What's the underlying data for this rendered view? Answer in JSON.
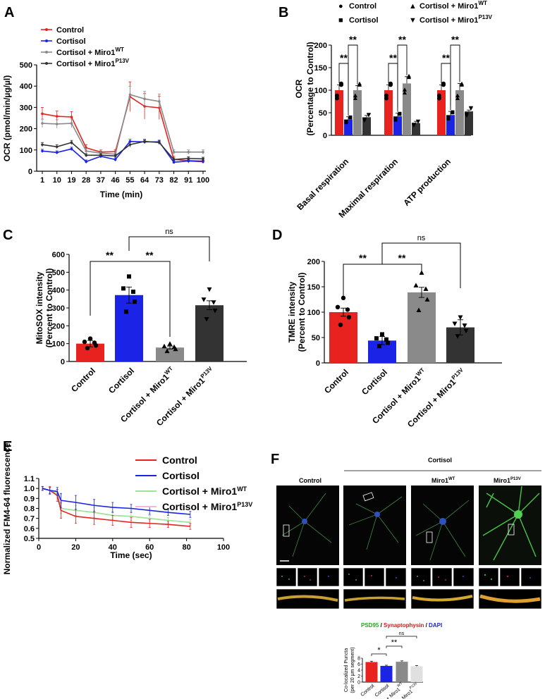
{
  "panels": {
    "A": "A",
    "B": "B",
    "C": "C",
    "D": "D",
    "E": "E",
    "F": "F"
  },
  "colors": {
    "control": "#e8221f",
    "cortisol": "#1a23e6",
    "miro_wt": "#8a8a8a",
    "miro_p13v": "#333333",
    "wt_light": "#99e699",
    "p13v_light": "#f2b8e0",
    "cortisol_F": "#e0e0e0"
  },
  "chart_data": [
    {
      "id": "A",
      "type": "line",
      "xlabel": "Time  (min)",
      "ylabel": "OCR  (pmol/min/µg/µl)",
      "x": [
        1,
        10,
        19,
        28,
        37,
        46,
        55,
        64,
        73,
        82,
        91,
        100
      ],
      "ylim": [
        0,
        500
      ],
      "yticks": [
        0,
        100,
        200,
        300,
        400,
        500
      ],
      "legend": [
        {
          "label": "Control",
          "sup": ""
        },
        {
          "label": "Cortisol",
          "sup": ""
        },
        {
          "label": "Cortisol + Miro1",
          "sup": "WT"
        },
        {
          "label": "Cortisol + Miro1",
          "sup": "P13V"
        }
      ],
      "series": [
        {
          "name": "Control",
          "values": [
            270,
            258,
            255,
            110,
            90,
            92,
            350,
            305,
            298,
            55,
            50,
            48
          ],
          "err": [
            30,
            25,
            25,
            15,
            10,
            10,
            70,
            60,
            55,
            15,
            12,
            12
          ]
        },
        {
          "name": "Cortisol",
          "values": [
            95,
            88,
            105,
            45,
            70,
            55,
            140,
            138,
            138,
            42,
            48,
            45
          ],
          "err": [
            8,
            8,
            8,
            8,
            8,
            8,
            10,
            8,
            8,
            6,
            6,
            6
          ]
        },
        {
          "name": "Cortisol + Miro1WT",
          "values": [
            225,
            222,
            225,
            95,
            85,
            80,
            360,
            340,
            328,
            90,
            90,
            90
          ],
          "err": [
            20,
            20,
            20,
            12,
            10,
            10,
            40,
            35,
            35,
            10,
            10,
            10
          ]
        },
        {
          "name": "Cortisol + Miro1P13V",
          "values": [
            125,
            115,
            135,
            75,
            75,
            72,
            125,
            140,
            135,
            55,
            60,
            58
          ],
          "err": [
            10,
            10,
            10,
            8,
            8,
            8,
            12,
            10,
            10,
            8,
            8,
            8
          ]
        }
      ]
    },
    {
      "id": "B",
      "type": "bar",
      "ylabel": "OCR",
      "ylabel2": "(Percentage to Control)",
      "ylim": [
        0,
        200
      ],
      "yticks": [
        0,
        50,
        100,
        150,
        200
      ],
      "categories": [
        "Basal respiration",
        "Maximal respiration",
        "ATP production"
      ],
      "legend": [
        {
          "marker": "●",
          "label": "Control",
          "sup": ""
        },
        {
          "marker": "■",
          "label": "Cortisol",
          "sup": ""
        },
        {
          "marker": "▲",
          "label": "Cortisol + Miro1",
          "sup": "WT"
        },
        {
          "marker": "▼",
          "label": "Cortisol + Miro1",
          "sup": "P13V"
        }
      ],
      "series": [
        {
          "name": "Control",
          "values": [
            100,
            100,
            100
          ],
          "err": [
            12,
            12,
            12
          ]
        },
        {
          "name": "Cortisol",
          "values": [
            35,
            42,
            45
          ],
          "err": [
            6,
            7,
            8
          ]
        },
        {
          "name": "Cortisol + Miro1WT",
          "values": [
            100,
            115,
            100
          ],
          "err": [
            10,
            15,
            15
          ]
        },
        {
          "name": "Cortisol + Miro1P13V",
          "values": [
            40,
            27,
            53
          ],
          "err": [
            4,
            4,
            3
          ]
        }
      ],
      "sig": [
        "**",
        "**",
        "**",
        "**",
        "**",
        "**"
      ]
    },
    {
      "id": "C",
      "type": "bar",
      "ylabel": "MitoSOX intensity",
      "ylabel2": "(Percent to Control)",
      "ylim": [
        0,
        600
      ],
      "yticks": [
        0,
        100,
        200,
        300,
        400,
        500,
        600
      ],
      "categories": [
        {
          "label": "Control",
          "sup": ""
        },
        {
          "label": "Cortisol",
          "sup": ""
        },
        {
          "label": "Cortisol + Miro1",
          "sup": "WT"
        },
        {
          "label": "Cortisol + Miro1",
          "sup": "P13V"
        }
      ],
      "values": [
        100,
        372,
        78,
        315
      ],
      "err": [
        18,
        45,
        8,
        25
      ],
      "sig": [
        "**",
        "**",
        "ns"
      ]
    },
    {
      "id": "D",
      "type": "bar",
      "ylabel": "TMRE intensity",
      "ylabel2": "(Percent to Control)",
      "ylim": [
        0,
        200
      ],
      "yticks": [
        0,
        50,
        100,
        150,
        200
      ],
      "categories": [
        {
          "label": "Control",
          "sup": ""
        },
        {
          "label": "Cortisol",
          "sup": ""
        },
        {
          "label": "Cortisol + Miro1",
          "sup": "WT"
        },
        {
          "label": "Cortisol + Miro1",
          "sup": "P13V"
        }
      ],
      "values": [
        100,
        44,
        139,
        70
      ],
      "err": [
        8,
        8,
        10,
        15
      ],
      "sig": [
        "**",
        "**",
        "ns"
      ]
    },
    {
      "id": "E",
      "type": "line",
      "xlabel": "Time (sec)",
      "ylabel": "Normalized FM4-64 fluorescence",
      "xlim": [
        0,
        100
      ],
      "xticks": [
        0,
        20,
        40,
        60,
        80,
        100
      ],
      "ylim": [
        0.5,
        1.1
      ],
      "yticks": [
        0.5,
        0.6,
        0.7,
        0.8,
        0.9,
        1.0,
        1.1
      ],
      "legend": [
        {
          "label": "Control",
          "sup": ""
        },
        {
          "label": "Cortisol",
          "sup": ""
        },
        {
          "label": "Cortisol + Miro1",
          "sup": "WT"
        },
        {
          "label": "Cortisol + Miro1",
          "sup": "P13V"
        }
      ],
      "series": [
        {
          "name": "Control",
          "x": [
            2,
            6,
            10,
            12,
            20,
            30,
            40,
            50,
            60,
            70,
            82
          ],
          "values": [
            1.0,
            0.98,
            0.93,
            0.78,
            0.72,
            0.7,
            0.68,
            0.66,
            0.65,
            0.64,
            0.62
          ],
          "err": [
            0.02,
            0.04,
            0.06,
            0.08,
            0.07,
            0.06,
            0.05,
            0.05,
            0.04,
            0.03,
            0.03
          ]
        },
        {
          "name": "Cortisol",
          "x": [
            2,
            6,
            10,
            12,
            20,
            30,
            40,
            50,
            60,
            70,
            82
          ],
          "values": [
            1.0,
            0.98,
            0.97,
            0.88,
            0.86,
            0.83,
            0.81,
            0.8,
            0.78,
            0.76,
            0.74
          ],
          "err": [
            0.02,
            0.03,
            0.04,
            0.07,
            0.07,
            0.06,
            0.05,
            0.04,
            0.04,
            0.03,
            0.03
          ]
        },
        {
          "name": "Cortisol + Miro1WT",
          "x": [
            2,
            6,
            10,
            12,
            20,
            30,
            40,
            50,
            60,
            70,
            82
          ],
          "values": [
            1.0,
            0.98,
            0.95,
            0.8,
            0.78,
            0.76,
            0.73,
            0.72,
            0.7,
            0.68,
            0.66
          ],
          "err": [
            0.02,
            0.03,
            0.04,
            0.05,
            0.05,
            0.05,
            0.04,
            0.04,
            0.03,
            0.03,
            0.03
          ]
        },
        {
          "name": "Cortisol + Miro1P13V",
          "x": [
            2,
            6,
            10,
            12,
            20,
            30,
            40,
            50,
            60,
            70,
            82
          ],
          "values": [
            1.0,
            0.98,
            0.95,
            0.8,
            0.78,
            0.76,
            0.73,
            0.72,
            0.7,
            0.68,
            0.66
          ],
          "err": [
            0.02,
            0.03,
            0.04,
            0.05,
            0.05,
            0.05,
            0.04,
            0.04,
            0.03,
            0.03,
            0.03
          ]
        }
      ]
    },
    {
      "id": "F",
      "type": "bar",
      "ylabel": "Co-localized Puncta",
      "ylabel2": "(per 20 µm segment)",
      "ylim": [
        0,
        8
      ],
      "yticks": [
        0,
        2,
        4,
        6,
        8
      ],
      "categories": [
        {
          "label": "Control",
          "sup": ""
        },
        {
          "label": "Cortisol",
          "sup": ""
        },
        {
          "label": "Cortisol + Miro1",
          "sup": "WT"
        },
        {
          "label": "Cortisol + Miro1",
          "sup": "P13V"
        }
      ],
      "values": [
        6.7,
        5.4,
        6.8,
        5.3
      ],
      "err": [
        0.3,
        0.25,
        0.3,
        0.25
      ],
      "sig": [
        "*",
        "**",
        "ns"
      ]
    }
  ],
  "panelF": {
    "header_control": "Control",
    "header_cortisol": "Cortisol",
    "header_wt": "Miro1",
    "header_wt_sup": "WT",
    "header_p13v": "Miro1",
    "header_p13v_sup": "P13V",
    "stain_psd": "PSD95",
    "stain_sep1": " / ",
    "stain_syn": "Synaptophysin",
    "stain_sep2": " / ",
    "stain_dapi": "DAPI"
  }
}
